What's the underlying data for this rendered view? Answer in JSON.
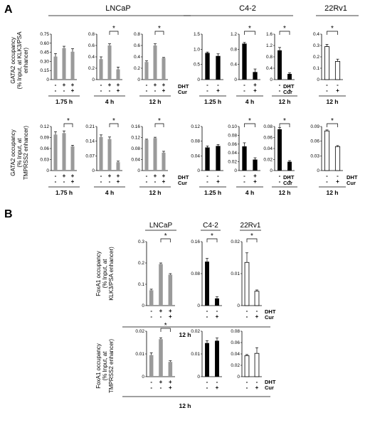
{
  "panels": [
    {
      "label": "A"
    },
    {
      "label": "B"
    }
  ],
  "groups_A": [
    "LNCaP",
    "C4-2",
    "22Rv1"
  ],
  "groups_B": [
    "LNCaP",
    "C4-2",
    "22Rv1"
  ],
  "ytitles": {
    "A_KLK3": [
      "GATA2 occupancy",
      "(% Input, at KLK3/PSA",
      "enhancer)"
    ],
    "A_TMPRSS2": [
      "GATA2 occupancy",
      "(% Input, at",
      "TMPRSS2 enhancer)"
    ],
    "B_KLK3": [
      "FoxA1 occupancy",
      "(% Input, at",
      "KLK3/PSA enhancer)"
    ],
    "B_TMPRSS2": [
      "FoxA1 occupancy",
      "(% Input, at",
      "TMPRSS2 enhancer)"
    ]
  },
  "row_labels": {
    "dht": "DHT",
    "cur": "Cur"
  },
  "sig_mark": "*",
  "time_B": "12 h",
  "colors": {
    "lncap": "#9a9a9a",
    "c42": "#000000",
    "rv1": "#ffffff"
  },
  "chart_data": [
    {
      "type": "bar",
      "id": "A-KLK3-LNCaP-1.75h",
      "time": "1.75 h",
      "ylim": [
        0,
        0.75
      ],
      "ticks": [
        "0",
        "0.15",
        "0.30",
        "0.45",
        "0.60",
        "0.75"
      ],
      "dht": [
        "-",
        "+",
        "+"
      ],
      "cur": [
        "-",
        "-",
        "+"
      ],
      "values": [
        0.38,
        0.52,
        0.46
      ],
      "errors": [
        0.05,
        0.03,
        0.05
      ],
      "color": "lncap",
      "sig": null
    },
    {
      "type": "bar",
      "id": "A-KLK3-LNCaP-4h",
      "time": "4 h",
      "ylim": [
        0,
        0.8
      ],
      "ticks": [
        "0",
        "0.2",
        "0.4",
        "0.6",
        "0.8"
      ],
      "dht": [
        "-",
        "+",
        "+"
      ],
      "cur": [
        "-",
        "-",
        "+"
      ],
      "values": [
        0.36,
        0.6,
        0.18
      ],
      "errors": [
        0.04,
        0.03,
        0.04
      ],
      "color": "lncap",
      "sig": [
        1,
        2
      ]
    },
    {
      "type": "bar",
      "id": "A-KLK3-LNCaP-12h",
      "time": "12 h",
      "ylim": [
        0,
        0.8
      ],
      "ticks": [
        "0",
        "0.2",
        "0.4",
        "0.6",
        "0.8"
      ],
      "dht": [
        "-",
        "+",
        "+"
      ],
      "cur": [
        "-",
        "-",
        "+"
      ],
      "values": [
        0.31,
        0.6,
        0.38
      ],
      "errors": [
        0.02,
        0.03,
        0.01
      ],
      "color": "lncap",
      "sig": [
        1,
        2
      ]
    },
    {
      "type": "bar",
      "id": "A-KLK3-C42-1.25h",
      "time": "1.25 h",
      "ylim": [
        0,
        1.5
      ],
      "ticks": [
        "0",
        "0.5",
        "1.0",
        "1.5"
      ],
      "dht": [
        "-",
        "-"
      ],
      "cur": [
        "-",
        "+"
      ],
      "values": [
        0.88,
        0.78
      ],
      "errors": [
        0.03,
        0.07
      ],
      "color": "c42",
      "sig": null
    },
    {
      "type": "bar",
      "id": "A-KLK3-C42-4h",
      "time": "4 h",
      "ylim": [
        0,
        1.2
      ],
      "ticks": [
        "0",
        "0.4",
        "0.8",
        "1.2"
      ],
      "dht": [
        "-",
        "+"
      ],
      "cur": [
        "-",
        "+"
      ],
      "values": [
        0.95,
        0.2
      ],
      "errors": [
        0.03,
        0.08
      ],
      "color": "c42",
      "sig": [
        0,
        1
      ]
    },
    {
      "type": "bar",
      "id": "A-KLK3-C42-12h",
      "time": "12 h",
      "ylim": [
        0,
        1.6
      ],
      "ticks": [
        "0",
        "0.4",
        "0.8",
        "1.2",
        "1.6"
      ],
      "dht": [
        "-",
        "-"
      ],
      "cur": [
        "-",
        "+"
      ],
      "values": [
        1.03,
        0.2
      ],
      "errors": [
        0.1,
        0.04
      ],
      "color": "c42",
      "sig": [
        0,
        1
      ]
    },
    {
      "type": "bar",
      "id": "A-KLK3-22Rv1-12h",
      "time": "12 h",
      "ylim": [
        0,
        0.4
      ],
      "ticks": [
        "0",
        "0.1",
        "0.2",
        "0.3",
        "0.4"
      ],
      "dht": [
        "-",
        "-"
      ],
      "cur": [
        "-",
        "+"
      ],
      "values": [
        0.29,
        0.16
      ],
      "errors": [
        0.02,
        0.02
      ],
      "color": "rv1",
      "sig": [
        0,
        1
      ]
    },
    {
      "type": "bar",
      "id": "A-TMPRSS2-LNCaP-1.75h",
      "time": "1.75 h",
      "ylim": [
        0,
        0.12
      ],
      "ticks": [
        "0",
        "0.03",
        "0.06",
        "0.09",
        "0.12"
      ],
      "dht": [
        "-",
        "+",
        "+"
      ],
      "cur": [
        "-",
        "-",
        "+"
      ],
      "values": [
        0.098,
        0.102,
        0.066
      ],
      "errors": [
        0.008,
        0.006,
        0.003
      ],
      "color": "lncap",
      "sig": [
        1,
        2
      ]
    },
    {
      "type": "bar",
      "id": "A-TMPRSS2-LNCaP-4h",
      "time": "4 h",
      "ylim": [
        0,
        0.21
      ],
      "ticks": [
        "0",
        "0.07",
        "0.14",
        "0.21"
      ],
      "dht": [
        "-",
        "+",
        "+"
      ],
      "cur": [
        "-",
        "-",
        "+"
      ],
      "values": [
        0.16,
        0.15,
        0.04
      ],
      "errors": [
        0.01,
        0.01,
        0.005
      ],
      "color": "lncap",
      "sig": [
        1,
        2
      ]
    },
    {
      "type": "bar",
      "id": "A-TMPRSS2-LNCaP-12h",
      "time": "12 h",
      "ylim": [
        0,
        0.16
      ],
      "ticks": [
        "0",
        "0.04",
        "0.08",
        "0.12",
        "0.16"
      ],
      "dht": [
        "-",
        "+",
        "+"
      ],
      "cur": [
        "-",
        "-",
        "+"
      ],
      "values": [
        0.112,
        0.118,
        0.065
      ],
      "errors": [
        0.002,
        0.003,
        0.005
      ],
      "color": "lncap",
      "sig": [
        1,
        2
      ]
    },
    {
      "type": "bar",
      "id": "A-TMPRSS2-C42-1.25h",
      "time": "1.25 h",
      "ylim": [
        0,
        0.12
      ],
      "ticks": [
        "0",
        "0.04",
        "0.08",
        "0.12"
      ],
      "dht": [
        "-",
        "-"
      ],
      "cur": [
        "-",
        "+"
      ],
      "values": [
        0.063,
        0.067
      ],
      "errors": [
        0.004,
        0.004
      ],
      "color": "c42",
      "sig": null
    },
    {
      "type": "bar",
      "id": "A-TMPRSS2-C42-4h",
      "time": "4 h",
      "ylim": [
        0,
        0.1
      ],
      "ticks": [
        "0",
        "0.02",
        "0.04",
        "0.06",
        "0.08",
        "0.10"
      ],
      "dht": [
        "-",
        "+"
      ],
      "cur": [
        "-",
        "+"
      ],
      "values": [
        0.055,
        0.025
      ],
      "errors": [
        0.008,
        0.004
      ],
      "color": "c42",
      "sig": [
        0,
        1
      ]
    },
    {
      "type": "bar",
      "id": "A-TMPRSS2-C42-12h",
      "time": "12 h",
      "ylim": [
        0,
        0.08
      ],
      "ticks": [
        "0",
        "0.02",
        "0.04",
        "0.06",
        "0.08"
      ],
      "dht": [
        "-",
        "-"
      ],
      "cur": [
        "-",
        "+"
      ],
      "values": [
        0.075,
        0.016
      ],
      "errors": [
        0.003,
        0.002
      ],
      "color": "c42",
      "sig": [
        0,
        1
      ]
    },
    {
      "type": "bar",
      "id": "A-TMPRSS2-22Rv1-12h",
      "time": "12 h",
      "ylim": [
        0,
        0.09
      ],
      "ticks": [
        "0",
        "0.03",
        "0.06",
        "0.09"
      ],
      "dht": [
        "-",
        "-"
      ],
      "cur": [
        "-",
        "+"
      ],
      "values": [
        0.081,
        0.049
      ],
      "errors": [
        0.002,
        0.002
      ],
      "color": "rv1",
      "sig": [
        0,
        1
      ]
    },
    {
      "type": "bar",
      "id": "B-KLK3-LNCaP",
      "time": "",
      "ylim": [
        0,
        0.3
      ],
      "ticks": [
        "0",
        "0.1",
        "0.2",
        "0.3"
      ],
      "dht": [
        "-",
        "+",
        "+"
      ],
      "cur": [
        "-",
        "-",
        "+"
      ],
      "values": [
        0.072,
        0.195,
        0.145
      ],
      "errors": [
        0.005,
        0.005,
        0.005
      ],
      "color": "lncap",
      "sig": [
        1,
        2
      ]
    },
    {
      "type": "bar",
      "id": "B-KLK3-C42",
      "time": "",
      "ylim": [
        0,
        0.16
      ],
      "ticks": [
        "0",
        "0.08",
        "0.16"
      ],
      "dht": [
        "-",
        "-"
      ],
      "cur": [
        "-",
        "+"
      ],
      "values": [
        0.11,
        0.018
      ],
      "errors": [
        0.008,
        0.004
      ],
      "color": "c42",
      "sig": [
        0,
        1
      ]
    },
    {
      "type": "bar",
      "id": "B-KLK3-22Rv1",
      "time": "",
      "ylim": [
        0,
        0.02
      ],
      "ticks": [
        "0",
        "0.01",
        "0.02"
      ],
      "dht": [
        "-",
        "-"
      ],
      "cur": [
        "-",
        "+"
      ],
      "values": [
        0.0135,
        0.0045
      ],
      "errors": [
        0.003,
        0.0004
      ],
      "color": "rv1",
      "sig": [
        0,
        1
      ]
    },
    {
      "type": "bar",
      "id": "B-TMPRSS2-LNCaP",
      "time": "",
      "ylim": [
        0,
        0.02
      ],
      "ticks": [
        "0",
        "0.01",
        "0.02"
      ],
      "dht": [
        "-",
        "+",
        "+"
      ],
      "cur": [
        "-",
        "-",
        "+"
      ],
      "values": [
        0.0095,
        0.0165,
        0.0065
      ],
      "errors": [
        0.001,
        0.0006,
        0.0005
      ],
      "color": "lncap",
      "sig": [
        1,
        2
      ]
    },
    {
      "type": "bar",
      "id": "B-TMPRSS2-C42",
      "time": "",
      "ylim": [
        0,
        0.02
      ],
      "ticks": [
        "0",
        "0.01",
        "0.02"
      ],
      "dht": [
        "-",
        "-"
      ],
      "cur": [
        "-",
        "+"
      ],
      "values": [
        0.0148,
        0.0158
      ],
      "errors": [
        0.001,
        0.0012
      ],
      "color": "c42",
      "sig": null
    },
    {
      "type": "bar",
      "id": "B-TMPRSS2-22Rv1",
      "time": "",
      "ylim": [
        0,
        0.08
      ],
      "ticks": [
        "0",
        "0.02",
        "0.04",
        "0.06",
        "0.08"
      ],
      "dht": [
        "-",
        "-"
      ],
      "cur": [
        "-",
        "+"
      ],
      "values": [
        0.037,
        0.041
      ],
      "errors": [
        0.002,
        0.01
      ],
      "color": "rv1",
      "sig": null
    }
  ]
}
